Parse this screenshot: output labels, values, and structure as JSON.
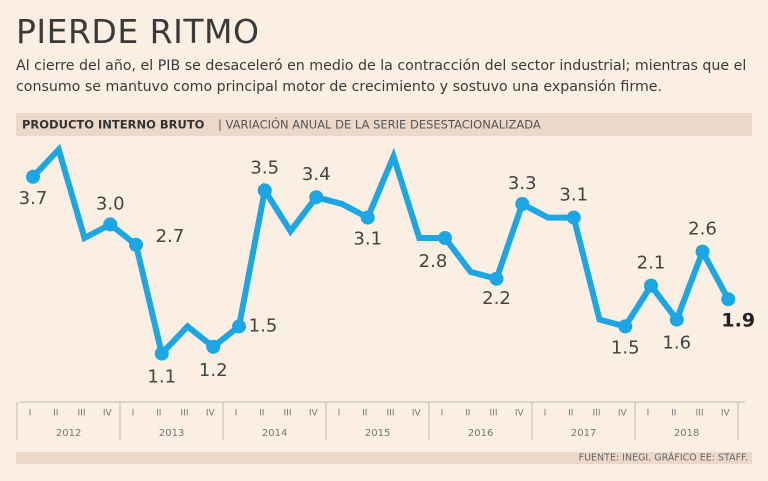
{
  "chart_data": {
    "type": "line",
    "title": "PIERDE RITMO",
    "subtitle": [
      "Al cierre del año, el PIB se desaceleró en medio de la contracción del sector industrial; mientras que el",
      "consumo se mantuvo como principal motor de crecimiento y sostuvo una expansión firme."
    ],
    "panel_title": "PRODUCTO INTERNO BRUTO",
    "panel_subtitle": "| VARIACIÓN ANUAL DE LA SERIE DESESTACIONALIZADA",
    "source": "FUENTE: INEGI. GRÁFICO EE: STAFF.",
    "categories": [
      "I",
      "II",
      "III",
      "IV",
      "I",
      "II",
      "III",
      "IV",
      "I",
      "II",
      "III",
      "IV",
      "I",
      "II",
      "III",
      "IV",
      "I",
      "II",
      "III",
      "IV",
      "I",
      "II",
      "III",
      "IV",
      "I",
      "II",
      "III",
      "IV"
    ],
    "years": [
      "2012",
      "2013",
      "2014",
      "2015",
      "2016",
      "2017",
      "2018"
    ],
    "values": [
      3.7,
      4.1,
      2.8,
      3.0,
      2.7,
      1.1,
      1.5,
      1.2,
      1.5,
      3.5,
      2.9,
      3.4,
      3.3,
      3.1,
      4.0,
      2.8,
      2.8,
      2.3,
      2.2,
      3.3,
      3.1,
      3.1,
      1.6,
      1.5,
      2.1,
      1.6,
      2.6,
      1.9
    ],
    "value_labels": [
      "3.7",
      null,
      null,
      "3.0",
      "2.7",
      "1.1",
      null,
      "1.2",
      "1.5",
      "3.5",
      null,
      "3.4",
      null,
      "3.1",
      null,
      null,
      "2.8",
      null,
      "2.2",
      "3.3",
      null,
      "3.1",
      null,
      "1.5",
      "2.1",
      "1.6",
      "2.6",
      "1.9"
    ],
    "color": "#1ba6e4",
    "ylim": [
      0.8,
      4.3
    ]
  }
}
